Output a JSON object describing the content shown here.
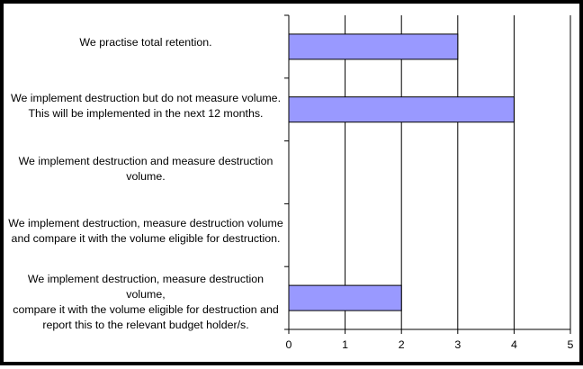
{
  "chart_data": {
    "type": "bar",
    "orientation": "horizontal",
    "title": "",
    "xlabel": "",
    "ylabel": "",
    "categories": [
      "We practise total retention.",
      "We implement destruction but do not measure volume. This will be implemented in the next 12 months.",
      "We implement destruction and measure destruction volume.",
      "We implement destruction, measure destruction volume and compare it with the volume eligible for destruction.",
      "We implement destruction, measure destruction volume, compare it with the volume eligible for destruction and report this to the relevant budget holder/s."
    ],
    "category_lines": [
      [
        "We practise total retention."
      ],
      [
        "We implement destruction but do not measure volume.",
        "This will be implemented in the next 12 months."
      ],
      [
        "We implement destruction and measure destruction",
        "volume."
      ],
      [
        "We implement destruction, measure destruction volume",
        "and compare it with the volume eligible for destruction."
      ],
      [
        "We implement destruction, measure destruction volume,",
        "compare it with the volume eligible for destruction and",
        "report this to the relevant budget holder/s."
      ]
    ],
    "values": [
      3,
      4,
      0,
      0,
      2
    ],
    "xlim": [
      0,
      5
    ],
    "xticks": [
      0,
      1,
      2,
      3,
      4,
      5
    ],
    "grid": "vertical",
    "legend": "none",
    "bar_color": "#9999ff",
    "bar_edge_color": "#000000",
    "grid_color": "#000000"
  }
}
